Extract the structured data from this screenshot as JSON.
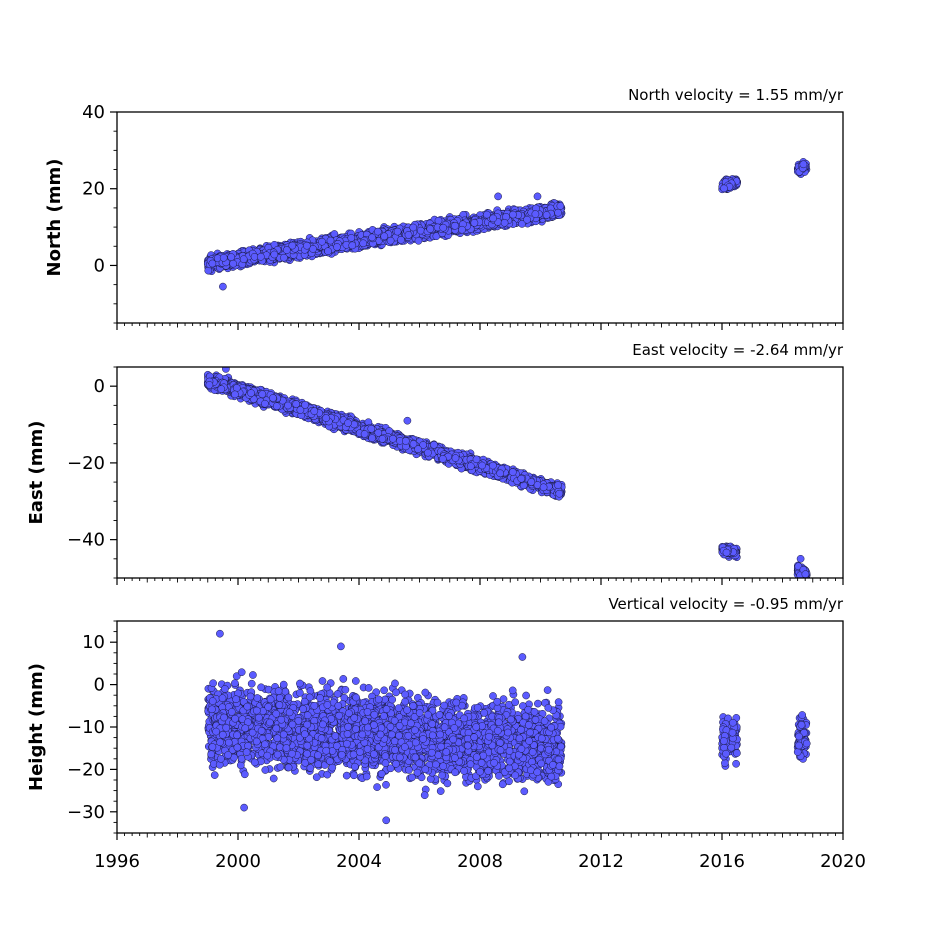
{
  "chart_data": [
    {
      "type": "scatter",
      "ylabel": "North (mm)",
      "annotation": "North velocity = 1.55 mm/yr",
      "xlim": [
        1996,
        2020
      ],
      "ylim": [
        -15,
        40
      ],
      "yticks": [
        0,
        20,
        40
      ],
      "segments": [
        {
          "x": [
            1999.0,
            2010.7
          ],
          "y": [
            0.5,
            14.5
          ],
          "spread": 1.3
        },
        {
          "x": [
            2016.0,
            2016.5
          ],
          "y": [
            20.8,
            21.8
          ],
          "spread": 0.8
        },
        {
          "x": [
            2018.5,
            2018.8
          ],
          "y": [
            24.8,
            26.0
          ],
          "spread": 1.0
        }
      ],
      "outliers": [
        {
          "x": 1999.5,
          "y": -5.5
        },
        {
          "x": 2008.6,
          "y": 18.0
        },
        {
          "x": 2009.9,
          "y": 18.0
        }
      ]
    },
    {
      "type": "scatter",
      "ylabel": "East (mm)",
      "annotation": "East velocity = -2.64 mm/yr",
      "xlim": [
        1996,
        2020
      ],
      "ylim": [
        -50,
        5
      ],
      "yticks": [
        -40,
        -20,
        0
      ],
      "segments": [
        {
          "x": [
            1999.0,
            2010.7
          ],
          "y": [
            1.5,
            -27.5
          ],
          "spread": 1.2
        },
        {
          "x": [
            2016.0,
            2016.5
          ],
          "y": [
            -42.8,
            -43.3
          ],
          "spread": 0.8
        },
        {
          "x": [
            2018.5,
            2018.8
          ],
          "y": [
            -48.0,
            -48.8
          ],
          "spread": 1.0
        }
      ],
      "outliers": [
        {
          "x": 1999.6,
          "y": 4.5
        },
        {
          "x": 2005.6,
          "y": -9.0
        },
        {
          "x": 2018.6,
          "y": -45.0
        }
      ]
    },
    {
      "type": "scatter",
      "ylabel": "Height (mm)",
      "annotation": "Vertical velocity = -0.95 mm/yr",
      "xlim": [
        1996,
        2020
      ],
      "ylim": [
        -35,
        15
      ],
      "yticks": [
        -30,
        -20,
        -10,
        0,
        10
      ],
      "segments": [
        {
          "x": [
            1999.0,
            2010.7
          ],
          "y": [
            -9.0,
            -14.5
          ],
          "spread": 6.5
        },
        {
          "x": [
            2016.0,
            2016.5
          ],
          "y": [
            -13.0,
            -13.0
          ],
          "spread": 3.5
        },
        {
          "x": [
            2018.5,
            2018.8
          ],
          "y": [
            -12.0,
            -12.0
          ],
          "spread": 3.5
        }
      ],
      "outliers": [
        {
          "x": 1999.4,
          "y": 12.0
        },
        {
          "x": 2003.4,
          "y": 9.0
        },
        {
          "x": 2009.4,
          "y": 6.5
        },
        {
          "x": 2004.9,
          "y": -32.0
        },
        {
          "x": 2000.2,
          "y": -29.0
        }
      ]
    }
  ],
  "x_axis": {
    "ticks": [
      1996,
      2000,
      2004,
      2008,
      2012,
      2016,
      2020
    ],
    "tick_labels": [
      "1996",
      "2000",
      "2004",
      "2008",
      "2012",
      "2016",
      "2020"
    ]
  },
  "colors": {
    "marker_fill": "#5b5bff",
    "marker_edge": "#1a1a40"
  }
}
